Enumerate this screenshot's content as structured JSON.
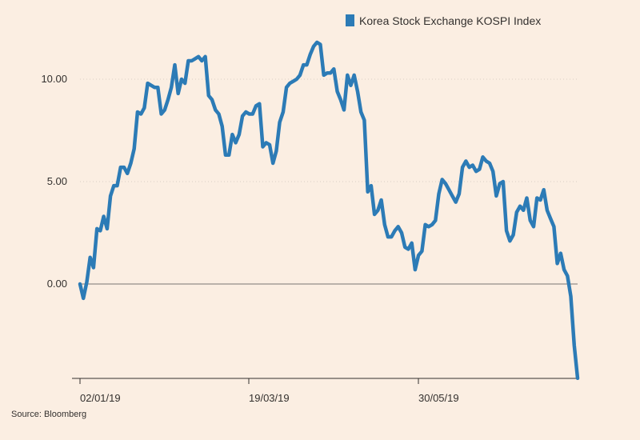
{
  "chart_data": {
    "type": "line",
    "title": "",
    "xlabel": "",
    "ylabel": "",
    "x_tick_labels": [
      "02/01/19",
      "19/03/19",
      "30/05/19"
    ],
    "y_tick_labels": [
      "0.00",
      "5.00",
      "10.00"
    ],
    "y_ticks": [
      0,
      5,
      10
    ],
    "ylim": [
      -4.6,
      12.5
    ],
    "grid": "horizontal-dotted",
    "legend_position": "top-right",
    "source": "Source: Bloomberg",
    "series": [
      {
        "name": "Korea Stock Exchange KOSPI Index",
        "color": "#2c7bb6",
        "values": [
          0.0,
          -0.7,
          0.1,
          1.3,
          0.8,
          2.7,
          2.6,
          3.3,
          2.7,
          4.3,
          4.8,
          4.8,
          5.7,
          5.7,
          5.4,
          5.9,
          6.6,
          8.4,
          8.3,
          8.6,
          9.8,
          9.7,
          9.6,
          9.6,
          8.3,
          8.5,
          9.0,
          9.6,
          10.7,
          9.3,
          10.0,
          9.8,
          10.9,
          10.9,
          11.0,
          11.1,
          10.9,
          11.1,
          9.2,
          9.0,
          8.5,
          8.3,
          7.7,
          6.3,
          6.3,
          7.3,
          6.9,
          7.3,
          8.2,
          8.4,
          8.3,
          8.3,
          8.7,
          8.8,
          6.7,
          6.9,
          6.8,
          5.9,
          6.5,
          7.9,
          8.4,
          9.6,
          9.8,
          9.9,
          10.0,
          10.2,
          10.7,
          10.7,
          11.2,
          11.6,
          11.8,
          11.7,
          10.2,
          10.3,
          10.3,
          10.5,
          9.4,
          9.0,
          8.5,
          10.2,
          9.7,
          10.2,
          9.4,
          8.4,
          8.0,
          4.5,
          4.8,
          3.4,
          3.6,
          4.1,
          2.9,
          2.3,
          2.3,
          2.6,
          2.8,
          2.5,
          1.8,
          1.7,
          2.0,
          0.7,
          1.4,
          1.6,
          2.9,
          2.8,
          2.9,
          3.1,
          4.4,
          5.1,
          4.9,
          4.6,
          4.3,
          4.0,
          4.4,
          5.7,
          6.0,
          5.7,
          5.8,
          5.5,
          5.6,
          6.2,
          6.0,
          5.9,
          5.5,
          4.3,
          4.9,
          5.0,
          2.6,
          2.1,
          2.4,
          3.5,
          3.8,
          3.6,
          4.2,
          3.1,
          2.8,
          4.2,
          4.1,
          4.6,
          3.6,
          3.2,
          2.8,
          1.0,
          1.5,
          0.7,
          0.4,
          -0.6,
          -3.0,
          -4.6
        ]
      }
    ]
  }
}
